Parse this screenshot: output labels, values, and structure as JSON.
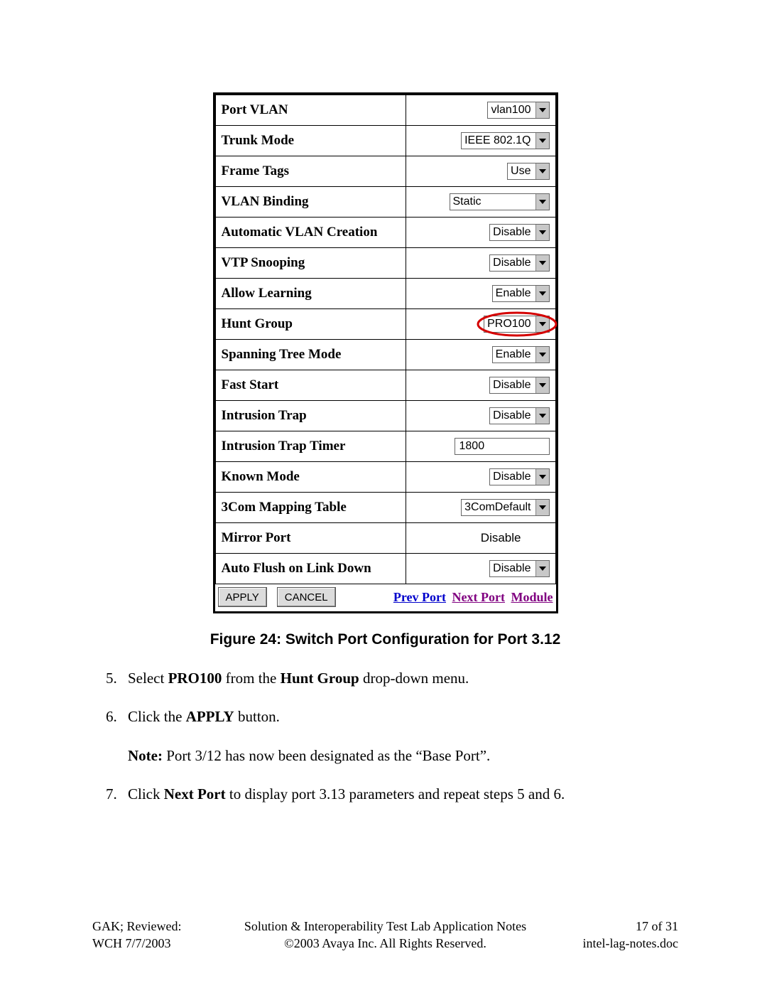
{
  "config_rows": [
    {
      "label": "Port VLAN",
      "kind": "dropdown",
      "value": "vlan100"
    },
    {
      "label": "Trunk Mode",
      "kind": "dropdown",
      "value": "IEEE 802.1Q"
    },
    {
      "label": "Frame Tags",
      "kind": "dropdown",
      "value": "Use",
      "wide": false
    },
    {
      "label": "VLAN Binding",
      "kind": "dropdown",
      "value": "Static",
      "wide": true
    },
    {
      "label": "Automatic VLAN Creation",
      "kind": "dropdown",
      "value": "Disable"
    },
    {
      "label": "VTP Snooping",
      "kind": "dropdown",
      "value": "Disable"
    },
    {
      "label": "Allow Learning",
      "kind": "dropdown",
      "value": "Enable"
    },
    {
      "label": "Hunt Group",
      "kind": "dropdown",
      "value": "PRO100",
      "highlight": true
    },
    {
      "label": "Spanning Tree Mode",
      "kind": "dropdown",
      "value": "Enable"
    },
    {
      "label": "Fast Start",
      "kind": "dropdown",
      "value": "Disable"
    },
    {
      "label": "Intrusion Trap",
      "kind": "dropdown",
      "value": "Disable"
    },
    {
      "label": "Intrusion Trap Timer",
      "kind": "text",
      "value": "1800"
    },
    {
      "label": "Known Mode",
      "kind": "dropdown",
      "value": "Disable"
    },
    {
      "label": "3Com Mapping Table",
      "kind": "dropdown",
      "value": "3ComDefault"
    },
    {
      "label": "Mirror Port",
      "kind": "plain",
      "value": "Disable"
    },
    {
      "label": "Auto Flush on Link Down",
      "kind": "dropdown",
      "value": "Disable"
    }
  ],
  "buttons": {
    "apply": "APPLY",
    "cancel": "CANCEL"
  },
  "nav": {
    "prev": "Prev Port",
    "next": "Next Port",
    "module": "Module",
    "prev_color": "#0000cc",
    "next_color": "#800080",
    "module_color": "#800080"
  },
  "highlight_color": "#d40000",
  "caption": "Figure 24: Switch Port Configuration for Port 3.12",
  "step5": {
    "pre": "Select ",
    "b1": "PRO100",
    "mid": " from the ",
    "b2": "Hunt Group",
    "post": " drop-down menu."
  },
  "step6": {
    "pre": "Click the ",
    "b1": "APPLY",
    "post": " button."
  },
  "note": {
    "b": "Note:",
    "text": " Port 3/12 has now been designated as the “Base Port”."
  },
  "step7": {
    "pre": "Click ",
    "b1": "Next Port",
    "post": " to display port 3.13 parameters and repeat steps 5 and 6."
  },
  "footer": {
    "left_l1": "GAK; Reviewed:",
    "left_l2": "WCH 7/7/2003",
    "center_l1": "Solution & Interoperability Test Lab Application Notes",
    "center_l2": "©2003 Avaya Inc. All Rights Reserved.",
    "right_l1": "17 of 31",
    "right_l2": "intel-lag-notes.doc"
  }
}
